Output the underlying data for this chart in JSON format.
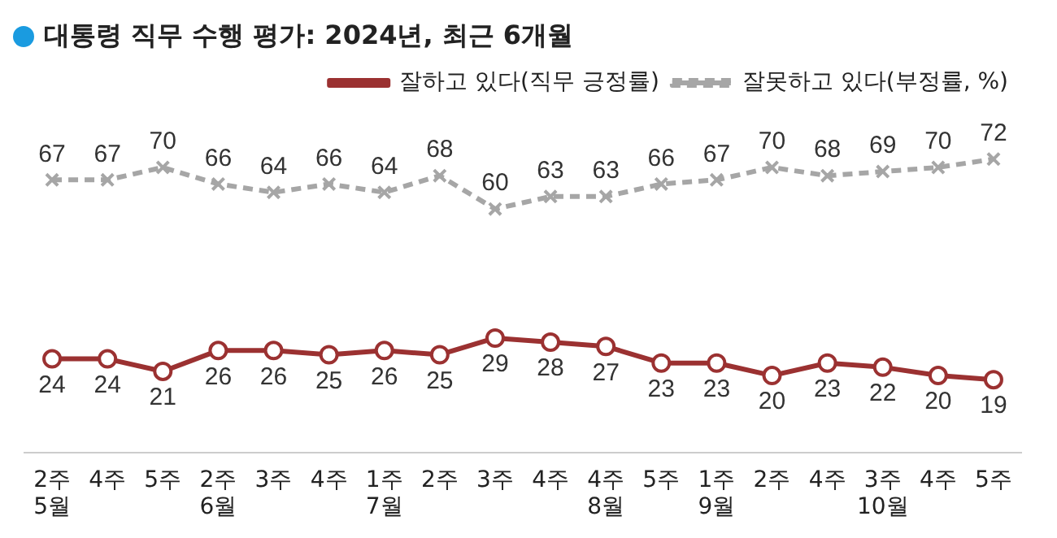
{
  "chart_data": {
    "type": "line",
    "title": "대통령 직무 수행 평가: 2024년, 최근 6개월",
    "categories": [
      "2주\n5월",
      "4주",
      "5주",
      "2주\n6월",
      "3주",
      "4주",
      "1주\n7월",
      "2주",
      "3주",
      "4주",
      "4주\n8월",
      "5주",
      "1주\n9월",
      "2주",
      "4주",
      "3주\n10월",
      "4주",
      "5주"
    ],
    "series": [
      {
        "name": "잘하고 있다(직무 긍정률)",
        "color": "#9b3131",
        "marker": "circle",
        "line_style": "solid",
        "values": [
          24,
          24,
          21,
          26,
          26,
          25,
          26,
          25,
          29,
          28,
          27,
          23,
          23,
          20,
          23,
          22,
          20,
          19
        ]
      },
      {
        "name": "잘못하고 있다(부정률, %)",
        "color": "#a6a6a6",
        "marker": "cross",
        "line_style": "dashed",
        "values": [
          67,
          67,
          70,
          66,
          64,
          66,
          64,
          68,
          60,
          63,
          63,
          66,
          67,
          70,
          68,
          69,
          70,
          72
        ]
      }
    ],
    "data_labels": true,
    "legend": "top right",
    "grid": false
  }
}
